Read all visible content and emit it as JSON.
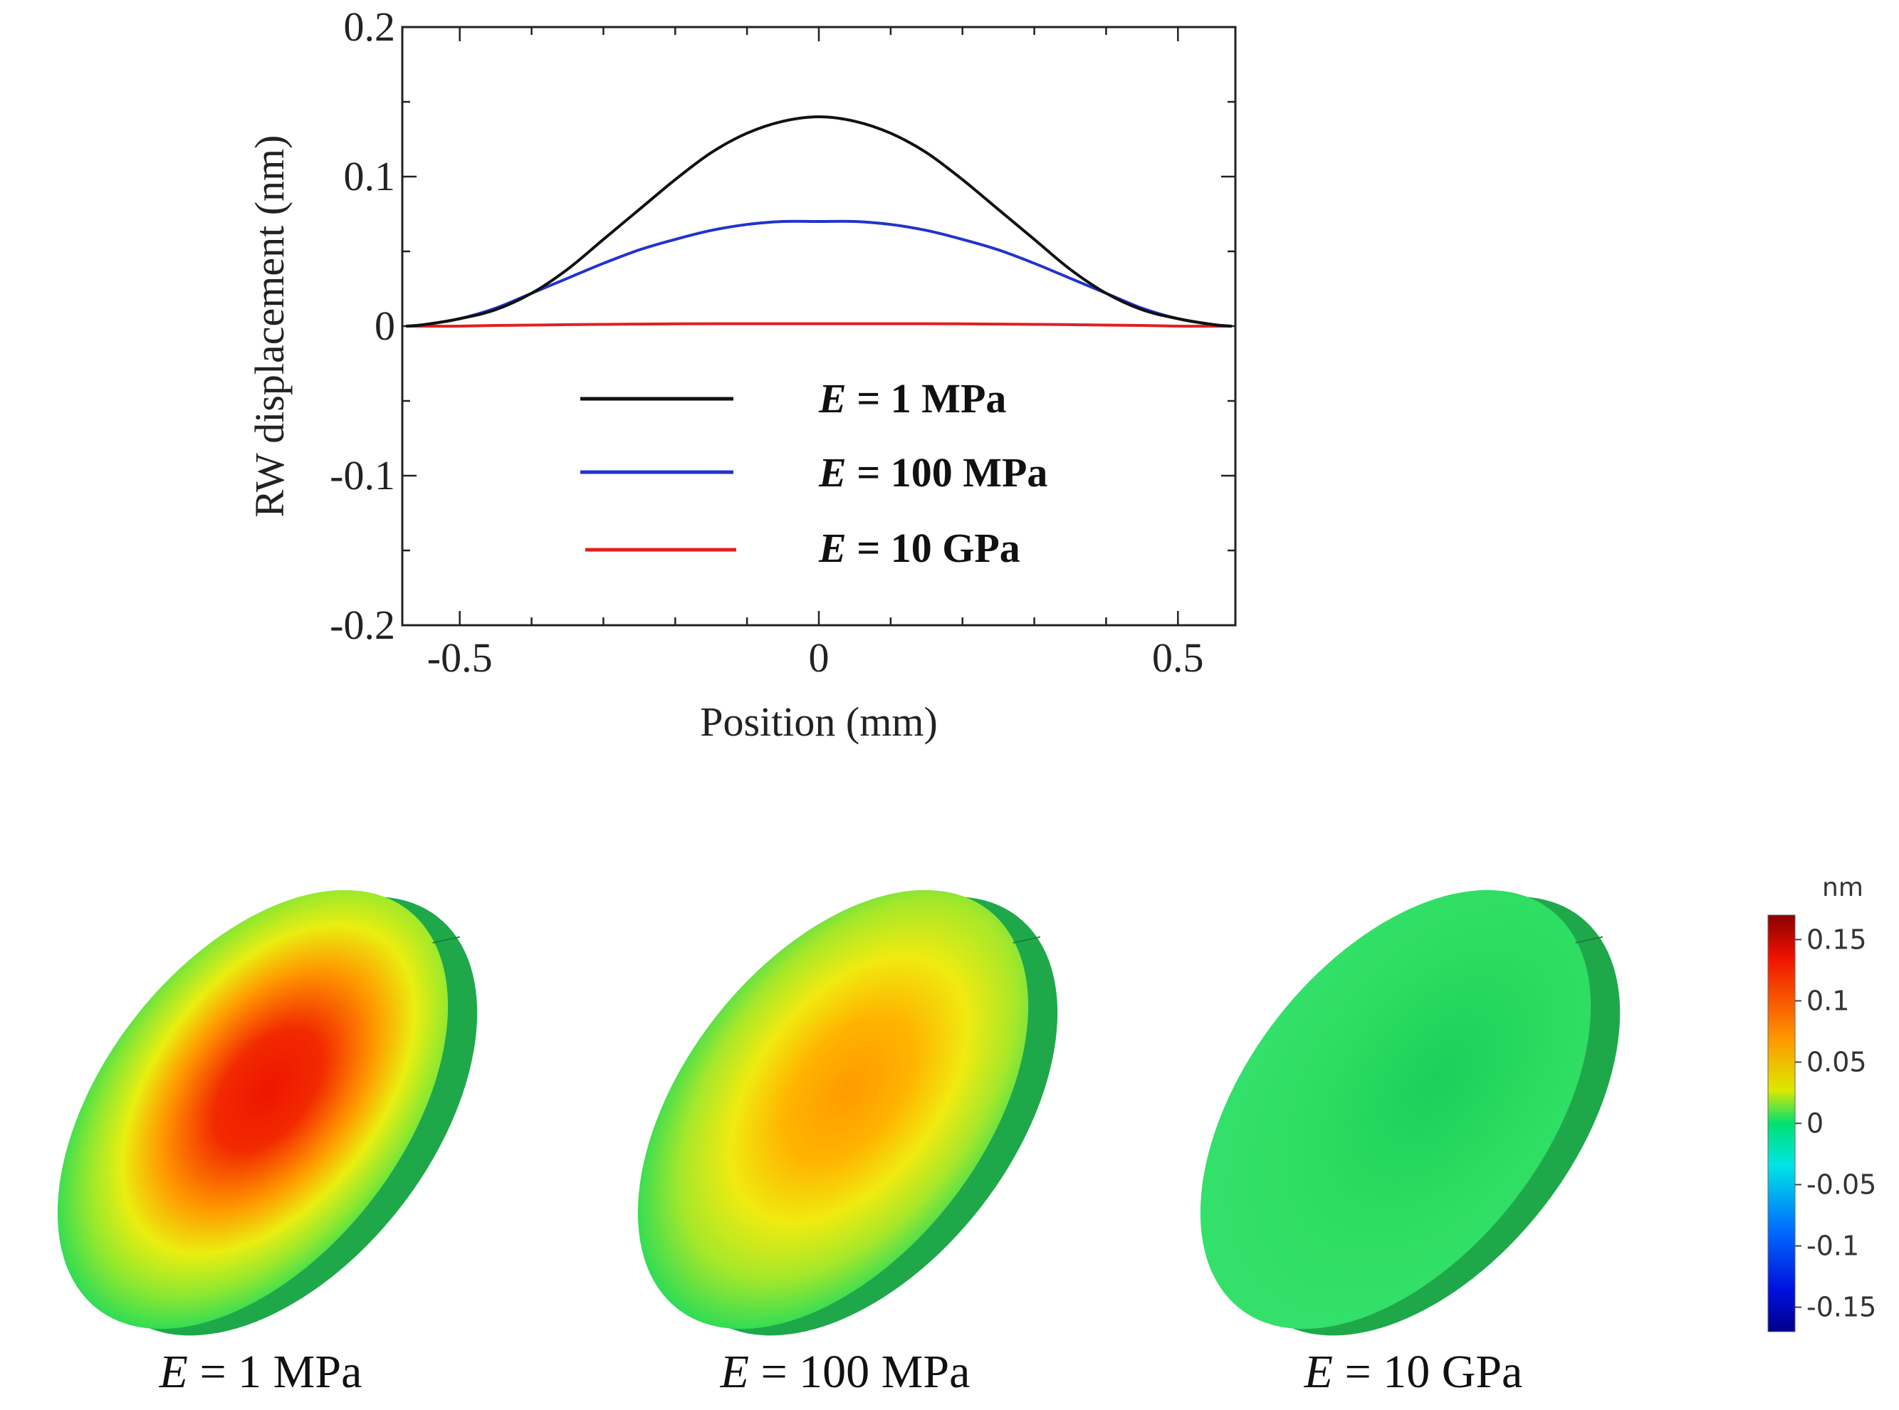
{
  "chart_data": {
    "type": "line",
    "title": "",
    "xlabel": "Position (mm)",
    "ylabel": "RW displacement (nm)",
    "xlim": [
      -0.58,
      0.58
    ],
    "ylim": [
      -0.2,
      0.2
    ],
    "xticks": [
      -0.5,
      0,
      0.5
    ],
    "xtick_labels": [
      "-0.5",
      "0",
      "0.5"
    ],
    "yticks": [
      -0.2,
      -0.1,
      0,
      0.1,
      0.2
    ],
    "ytick_labels": [
      "-0.2",
      "-0.1",
      "0",
      "0.1",
      "0.2"
    ],
    "grid": false,
    "legend_position": "lower-center",
    "x": [
      -0.575,
      -0.55,
      -0.5,
      -0.45,
      -0.4,
      -0.35,
      -0.3,
      -0.25,
      -0.2,
      -0.15,
      -0.1,
      -0.05,
      0,
      0.05,
      0.1,
      0.15,
      0.2,
      0.25,
      0.3,
      0.35,
      0.4,
      0.45,
      0.5,
      0.55,
      0.575
    ],
    "series": [
      {
        "name_prefix": "E",
        "name_value": " = 1 MPa",
        "color": "#111111",
        "values": [
          0.0,
          0.001,
          0.005,
          0.011,
          0.022,
          0.038,
          0.058,
          0.078,
          0.098,
          0.116,
          0.129,
          0.137,
          0.14,
          0.137,
          0.129,
          0.116,
          0.098,
          0.078,
          0.058,
          0.038,
          0.022,
          0.011,
          0.005,
          0.001,
          0.0
        ]
      },
      {
        "name_prefix": "E",
        "name_value": " = 100 MPa",
        "color": "#2233cc",
        "values": [
          0.0,
          0.001,
          0.005,
          0.012,
          0.022,
          0.032,
          0.042,
          0.051,
          0.058,
          0.064,
          0.068,
          0.07,
          0.07,
          0.07,
          0.068,
          0.064,
          0.058,
          0.051,
          0.042,
          0.032,
          0.022,
          0.012,
          0.005,
          0.001,
          0.0
        ]
      },
      {
        "name_prefix": "E",
        "name_value": " = 10 GPa",
        "color": "#e02020",
        "values": [
          0.0,
          0.0,
          0.0,
          0.0005,
          0.0007,
          0.001,
          0.0012,
          0.0014,
          0.0015,
          0.0016,
          0.0016,
          0.0016,
          0.0016,
          0.0016,
          0.0016,
          0.0016,
          0.0015,
          0.0014,
          0.0012,
          0.001,
          0.0007,
          0.0005,
          0.0,
          0.0,
          0.0
        ]
      }
    ]
  },
  "displacement_maps": [
    {
      "prefix": "E",
      "label": " = 1 MPa",
      "peak_nm": 0.14
    },
    {
      "prefix": "E",
      "label": " = 100 MPa",
      "peak_nm": 0.07
    },
    {
      "prefix": "E",
      "label": " = 10 GPa",
      "peak_nm": 0.0
    }
  ],
  "colorbar": {
    "unit": "nm",
    "range": [
      -0.17,
      0.17
    ],
    "tick_values": [
      0.15,
      0.1,
      0.05,
      0,
      -0.05,
      -0.1,
      -0.15
    ],
    "tick_labels": [
      "0.15",
      "0.1",
      "0.05",
      "0",
      "-0.05",
      "-0.1",
      "-0.15"
    ],
    "colors": {
      "min": "#00008b",
      "low": "#0044ff",
      "cyan": "#00e5e5",
      "zero": "#00e070",
      "pos": "#dce800",
      "mid": "#ff9900",
      "high": "#ee1100",
      "max": "#8b0000"
    }
  }
}
